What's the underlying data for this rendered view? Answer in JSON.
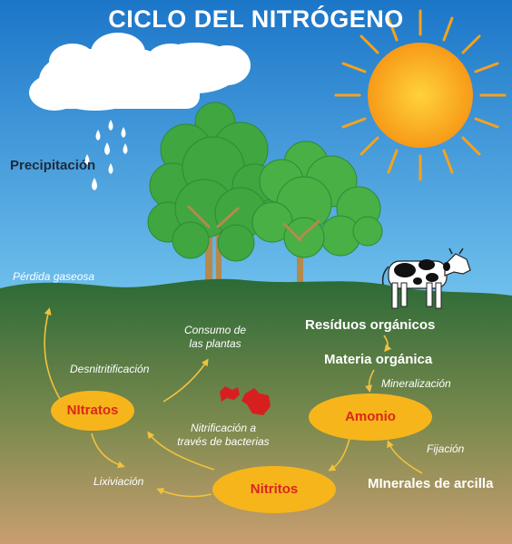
{
  "title": "CICLO DEL NITRÓGENO",
  "labels": {
    "precipitation": "Precipitación",
    "gas_loss": "Pérdida gaseosa",
    "plant_uptake_line1": "Consumo de",
    "plant_uptake_line2": "las plantas",
    "organic_residues": "Resíduos orgánicos",
    "organic_matter": "Materia orgánica",
    "mineralization": "Mineralización",
    "denitrification": "Desnitritificación",
    "nitrification_line1": "Nitrificación a",
    "nitrification_line2": "través de bacterias",
    "fixation": "Fijación",
    "leaching": "Lixiviación",
    "clay_minerals": "MInerales de arcilla"
  },
  "ovals": {
    "nitrates": "NItratos",
    "ammonium": "Amonio",
    "nitrites": "Nitritos"
  },
  "colors": {
    "sky_top": "#1c76c8",
    "sky_bottom": "#6fc0ec",
    "soil_top": "#2e6f3a",
    "soil_bottom": "#c79d70",
    "oval": "#f7b51c",
    "arrow": "#f1c23c",
    "oval_text": "#d9281a",
    "sun": "#f7a21b",
    "tree": "#3fa640",
    "trunk": "#b5894e"
  }
}
